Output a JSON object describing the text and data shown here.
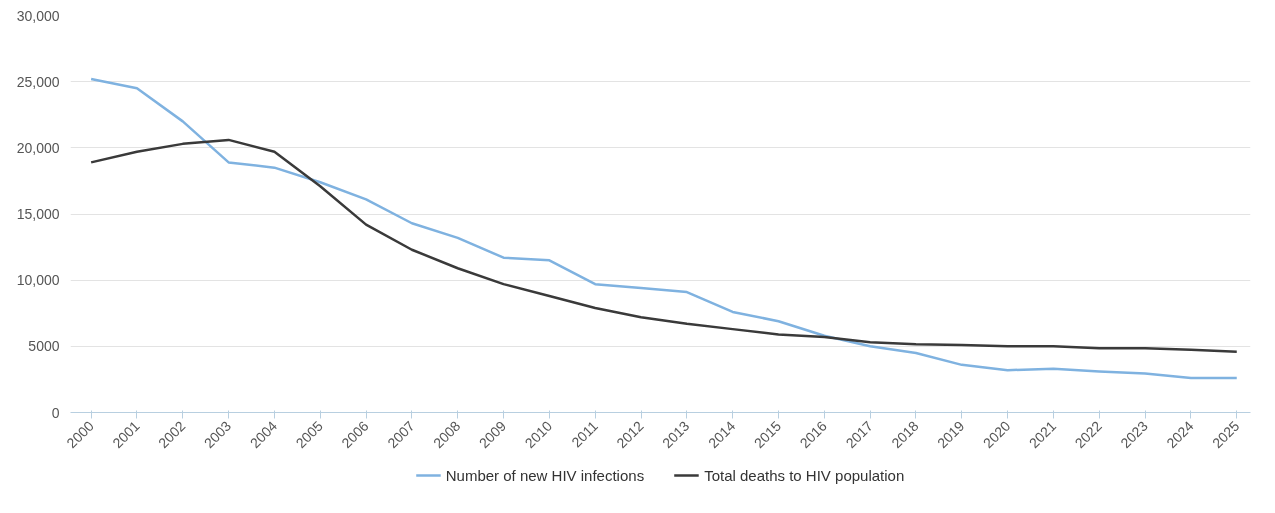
{
  "chart_data": {
    "type": "line",
    "categories": [
      "2000",
      "2001",
      "2002",
      "2003",
      "2004",
      "2005",
      "2006",
      "2007",
      "2008",
      "2009",
      "2010",
      "2011",
      "2012",
      "2013",
      "2014",
      "2015",
      "2016",
      "2017",
      "2018",
      "2019",
      "2020",
      "2021",
      "2022",
      "2023",
      "2024",
      "2025"
    ],
    "series": [
      {
        "name": "Number of new HIV infections",
        "color": "#7fb2e0",
        "values": [
          25200,
          24500,
          22000,
          18900,
          18500,
          17400,
          16100,
          14300,
          13200,
          11700,
          11500,
          9700,
          9400,
          9100,
          7600,
          6900,
          5800,
          5000,
          4500,
          3600,
          3200,
          3300,
          3100,
          2950,
          2600,
          2600
        ]
      },
      {
        "name": "Total deaths to HIV population",
        "color": "#3a3a3a",
        "values": [
          18900,
          19700,
          20300,
          20600,
          19700,
          17100,
          14200,
          12300,
          10900,
          9700,
          8800,
          7900,
          7200,
          6700,
          6300,
          5900,
          5700,
          5300,
          5150,
          5100,
          5000,
          5000,
          4850,
          4850,
          4750,
          4600
        ]
      }
    ],
    "ylim": [
      0,
      30000
    ],
    "yticks": [
      0,
      5000,
      {
        "value": 10000,
        "label": "10,000"
      },
      {
        "value": 15000,
        "label": "15,000"
      },
      {
        "value": 20000,
        "label": "20,000"
      },
      {
        "value": 25000,
        "label": "25,000"
      },
      {
        "value": 30000,
        "label": "30,000"
      }
    ],
    "grid": "y",
    "legend": "bottom",
    "marker": "none",
    "line_style": "solid"
  }
}
